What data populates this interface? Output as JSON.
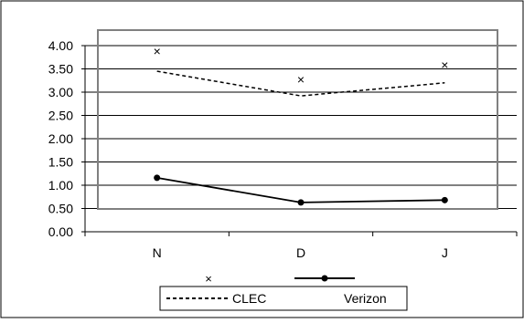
{
  "chart_data": {
    "type": "line",
    "categories": [
      "N",
      "D",
      "J"
    ],
    "ylim": [
      0,
      4
    ],
    "y_ticks": [
      "0.00",
      "0.50",
      "1.00",
      "1.50",
      "2.00",
      "2.50",
      "3.00",
      "3.50",
      "4.00"
    ],
    "grid": true,
    "legend_position": "bottom",
    "series": [
      {
        "name": "CLEC",
        "line_style": "dashed",
        "line_values": [
          3.45,
          2.92,
          3.2
        ],
        "x_marker_values": [
          3.88,
          3.27,
          3.59
        ]
      },
      {
        "name": "Verizon",
        "line_style": "solid",
        "marker": "circle",
        "values": [
          1.16,
          0.63,
          0.68
        ]
      }
    ],
    "colors": {
      "line": "#000000",
      "grid": "#000000",
      "frame": "#808080"
    }
  }
}
